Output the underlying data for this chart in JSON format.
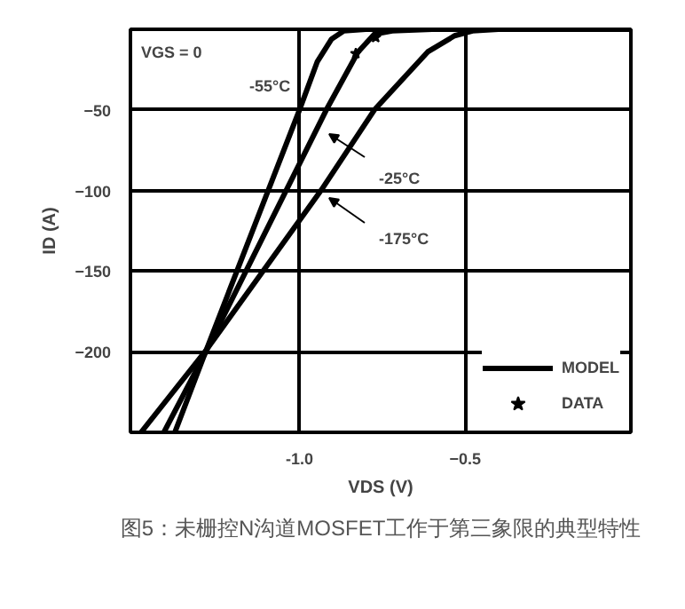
{
  "chart_data": {
    "type": "line",
    "xlabel": "VDS (V)",
    "ylabel": "ID (A)",
    "xlim": [
      -1.51,
      0
    ],
    "ylim": [
      -250,
      0
    ],
    "xticks": [
      {
        "value": -1.0,
        "label": "-1.0"
      },
      -0.5
    ],
    "yticks": [
      -50,
      -100,
      -150,
      -200
    ],
    "grid": true,
    "legend": "bottom right",
    "line_style": "solid",
    "series": [
      {
        "name": "MODEL",
        "color": "#000000",
        "x": [
          -1.376,
          -1.285,
          -1.0,
          -0.946,
          -0.903,
          -0.866,
          -0.8,
          -0.6,
          -0.3,
          0
        ],
        "values": [
          -250,
          -201,
          -50,
          -20,
          -6,
          -1,
          0,
          0,
          0,
          0
        ]
      },
      {
        "color": "#000000",
        "x": [
          -1.409,
          -1.285,
          -0.919,
          -0.823,
          -0.774,
          -0.72,
          -0.6,
          -0.3,
          0
        ],
        "values": [
          -250,
          -201,
          -50,
          -14,
          -3,
          -1,
          0,
          0,
          0
        ]
      },
      {
        "color": "#000000",
        "x": [
          -1.478,
          -1.285,
          -0.935,
          -0.774,
          -0.613,
          -0.532,
          -0.478,
          -0.4,
          -0.2,
          0
        ],
        "values": [
          -250,
          -200,
          -100,
          -50,
          -14,
          -4,
          -1,
          0,
          0,
          0
        ]
      },
      {
        "name": "DATA",
        "type": "scatter",
        "marker": "star",
        "color": "#000000",
        "x": [
          -0.83,
          -0.77
        ],
        "values": [
          -15,
          -5
        ]
      }
    ],
    "annotations": [
      "VGS = 0",
      "-55°C",
      "-25°C",
      "-175°C",
      "图5：未栅控N沟道MOSFET工作于第三象限的典型特性"
    ]
  }
}
